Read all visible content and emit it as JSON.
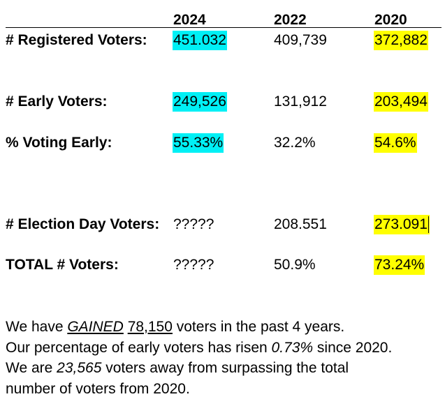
{
  "years": [
    "2024",
    "2022",
    "2020"
  ],
  "rows": [
    {
      "label": "# Registered Voters:",
      "values": [
        "451.032",
        "409,739",
        "372,882"
      ]
    },
    {
      "label": "# Early Voters:",
      "values": [
        "249,526",
        "131,912",
        "203,494"
      ]
    },
    {
      "label": "% Voting Early:",
      "values": [
        "55.33%",
        "32.2%",
        "54.6%"
      ]
    },
    {
      "label": "# Election Day Voters:",
      "values": [
        "?????",
        "208.551",
        "273.091"
      ]
    },
    {
      "label": "TOTAL # Voters:",
      "values": [
        "?????",
        "50.9%",
        "73.24%"
      ]
    }
  ],
  "highlight_colors": {
    "cyan": "#00f0f5",
    "yellow": "#ffff00"
  },
  "summary": {
    "line1": {
      "a": "We have ",
      "b": "GAINED",
      "c": " ",
      "d": "78,150",
      "e": " voters in the past 4 years."
    },
    "line2": {
      "a": "Our percentage of early voters has risen ",
      "b": "0.73%",
      "c": " since 2020."
    },
    "line3": {
      "a": "We are ",
      "b": "23,565",
      "c": " voters away from surpassing the total"
    },
    "line4": "number of voters from 2020."
  }
}
